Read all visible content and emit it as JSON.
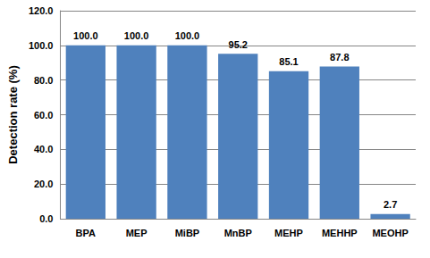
{
  "chart_data": {
    "type": "bar",
    "y_label": "Detection rate (%)",
    "categories": [
      "BPA",
      "MEP",
      "MiBP",
      "MnBP",
      "MEHP",
      "MEHHP",
      "MEOHP"
    ],
    "values": [
      100.0,
      100.0,
      100.0,
      95.2,
      85.1,
      87.8,
      2.7
    ],
    "value_labels": [
      "100.0",
      "100.0",
      "100.0",
      "95.2",
      "85.1",
      "87.8",
      "2.7"
    ],
    "color": "#4f81bd",
    "ylim": [
      0,
      120
    ],
    "yticks": [
      {
        "value": 0,
        "label": "0.0"
      },
      {
        "value": 20,
        "label": "20.0"
      },
      {
        "value": 40,
        "label": "40.0"
      },
      {
        "value": 60,
        "label": "60.0"
      },
      {
        "value": 80,
        "label": "80.0"
      },
      {
        "value": 100,
        "label": "100.0"
      },
      {
        "value": 120,
        "label": "120.0"
      }
    ],
    "grid": true,
    "data_labels": true
  }
}
